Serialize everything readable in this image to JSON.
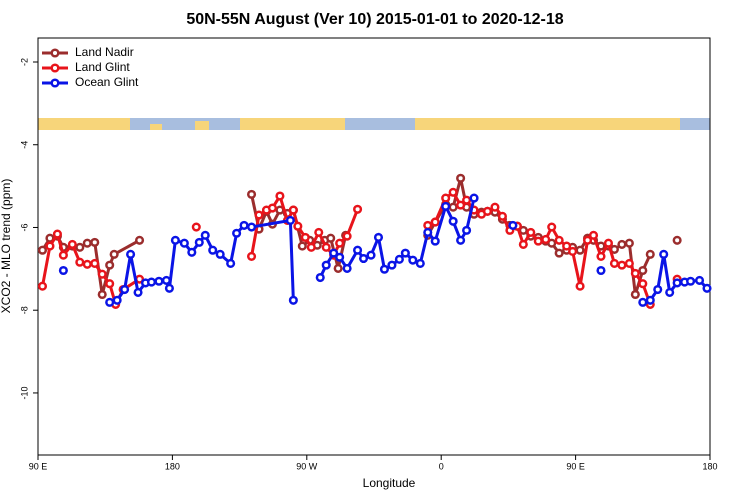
{
  "chart_data": {
    "type": "line",
    "title": "50N-55N August (Ver 10)   2015-01-01 to 2020-12-18",
    "xlabel": "Longitude",
    "ylabel": "XCO2 - MLO trend (ppm)",
    "xlim": [
      90,
      540
    ],
    "xticks": [
      {
        "value": 90,
        "label": "90 E"
      },
      {
        "value": 180,
        "label": "180"
      },
      {
        "value": 270,
        "label": "90 W"
      },
      {
        "value": 360,
        "label": "0"
      },
      {
        "value": 450,
        "label": "90 E"
      },
      {
        "value": 540,
        "label": "180"
      }
    ],
    "ylim": [
      -11.5,
      -1.42
    ],
    "yticks": [
      -2,
      -4,
      -6,
      -8,
      -10
    ],
    "legend": "top-left",
    "series": [
      {
        "name": "Land Nadir",
        "color": "#9b2d2d",
        "x": [
          93,
          98,
          103,
          107,
          113,
          118,
          123,
          128,
          133,
          138,
          141,
          158,
          null,
          233,
          238,
          243,
          247,
          252,
          257,
          261,
          267,
          272,
          277,
          282,
          286,
          291,
          296,
          null,
          351,
          356,
          363,
          368,
          373,
          377,
          382,
          387,
          391,
          396,
          401,
          406,
          411,
          415,
          420,
          425,
          430,
          434,
          439,
          444,
          448,
          453,
          458,
          462,
          467,
          472,
          476,
          481,
          486,
          490,
          495,
          500,
          null,
          518
        ],
        "values": [
          -6.55,
          -6.26,
          -6.21,
          -6.48,
          -6.45,
          -6.48,
          -6.38,
          -6.36,
          -7.62,
          -6.91,
          -6.65,
          -6.31,
          null,
          -5.2,
          -6.04,
          -5.61,
          -5.92,
          -5.58,
          -5.66,
          -5.58,
          -6.45,
          -6.31,
          -6.43,
          -6.31,
          -6.26,
          -6.99,
          -6.19,
          null,
          -6.19,
          -5.87,
          -5.44,
          -5.51,
          -4.81,
          -5.51,
          -5.68,
          -5.63,
          -5.61,
          -5.63,
          -5.8,
          -5.95,
          -5.97,
          -6.07,
          -6.21,
          -6.24,
          -6.33,
          -6.38,
          -6.62,
          -6.55,
          -6.48,
          -6.55,
          -6.26,
          -6.31,
          -6.45,
          -6.45,
          -6.53,
          -6.41,
          -6.38,
          -7.62,
          -7.04,
          -6.65,
          null,
          -6.31
        ]
      },
      {
        "name": "Land Glint",
        "color": "#e8141b",
        "x": [
          93,
          98,
          103,
          107,
          113,
          118,
          123,
          128,
          133,
          138,
          142,
          147,
          158,
          null,
          196,
          null,
          233,
          238,
          243,
          247,
          252,
          257,
          261,
          264,
          269,
          273,
          278,
          283,
          288,
          292,
          297,
          304,
          null,
          351,
          356,
          363,
          368,
          373,
          377,
          382,
          387,
          391,
          396,
          401,
          406,
          411,
          415,
          420,
          425,
          430,
          434,
          439,
          444,
          448,
          453,
          458,
          462,
          467,
          472,
          476,
          481,
          486,
          490,
          495,
          500,
          null,
          518
        ],
        "values": [
          -7.42,
          -6.45,
          -6.16,
          -6.67,
          -6.41,
          -6.84,
          -6.89,
          -6.87,
          -7.13,
          -7.36,
          -7.86,
          -7.5,
          -7.25,
          null,
          -5.99,
          null,
          -6.7,
          -5.7,
          -5.58,
          -5.53,
          -5.24,
          -5.83,
          -5.58,
          -5.97,
          -6.24,
          -6.48,
          -6.12,
          -6.48,
          -6.67,
          -6.38,
          -6.21,
          -5.56,
          null,
          -5.95,
          -5.87,
          -5.29,
          -5.15,
          -5.46,
          -5.34,
          -5.58,
          -5.68,
          -5.61,
          -5.51,
          -5.73,
          -6.07,
          -5.97,
          -6.41,
          -6.12,
          -6.33,
          -6.29,
          -5.99,
          -6.31,
          -6.45,
          -6.58,
          -7.42,
          -6.31,
          -6.19,
          -6.7,
          -6.38,
          -6.87,
          -6.91,
          -6.87,
          -7.11,
          -7.36,
          -7.86,
          null,
          -7.25
        ]
      },
      {
        "name": "Ocean Glint",
        "color": "#0a14e6",
        "x": [
          107,
          null,
          138,
          143,
          148,
          152,
          157,
          162,
          166,
          171,
          176,
          178,
          182,
          188,
          193,
          198,
          202,
          207,
          212,
          219,
          223,
          228,
          233,
          259,
          261,
          null,
          279,
          283,
          288,
          292,
          297,
          304,
          308,
          313,
          318,
          322,
          327,
          332,
          336,
          341,
          346,
          351,
          356,
          363,
          368,
          373,
          377,
          382,
          null,
          408,
          null,
          467,
          null,
          495,
          500,
          505,
          509,
          513,
          518,
          523,
          527,
          533,
          538
        ],
        "values": [
          -7.04,
          null,
          -7.81,
          -7.76,
          -7.5,
          -6.65,
          -7.57,
          -7.34,
          -7.32,
          -7.3,
          -7.28,
          -7.47,
          -6.31,
          -6.38,
          -6.6,
          -6.36,
          -6.19,
          -6.55,
          -6.65,
          -6.87,
          -6.14,
          -5.95,
          -5.99,
          -5.83,
          -7.76,
          null,
          -7.21,
          -6.91,
          -6.62,
          -6.72,
          -6.99,
          -6.55,
          -6.75,
          -6.67,
          -6.24,
          -7.01,
          -6.91,
          -6.77,
          -6.62,
          -6.79,
          -6.87,
          -6.12,
          -6.33,
          -5.49,
          -5.85,
          -6.31,
          -6.07,
          -5.29,
          null,
          -5.95,
          null,
          -7.04,
          null,
          -7.81,
          -7.76,
          -7.5,
          -6.65,
          -7.57,
          -7.34,
          -7.32,
          -7.3,
          -7.28,
          -7.47
        ]
      }
    ]
  }
}
